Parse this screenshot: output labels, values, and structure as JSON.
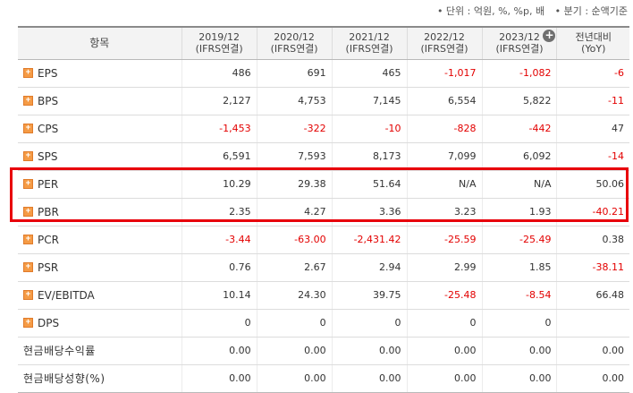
{
  "notes": {
    "unit": "• 단위 : 억원, %, %p, 배",
    "quarter": "• 분기 : 순액기준"
  },
  "table": {
    "item_header": "항목",
    "columns": [
      {
        "year": "2019/12",
        "basis": "(IFRS연결)"
      },
      {
        "year": "2020/12",
        "basis": "(IFRS연결)"
      },
      {
        "year": "2021/12",
        "basis": "(IFRS연결)"
      },
      {
        "year": "2022/12",
        "basis": "(IFRS연결)"
      },
      {
        "year": "2023/12",
        "basis": "(IFRS연결)"
      }
    ],
    "yoy_header": {
      "line1": "전년대비",
      "line2": "(YoY)"
    },
    "expand_icon": "plus-circle-icon",
    "rows": [
      {
        "label": "EPS",
        "expandable": true,
        "values": [
          "486",
          "691",
          "465",
          "-1,017",
          "-1,082"
        ],
        "yoy": "-6"
      },
      {
        "label": "BPS",
        "expandable": true,
        "values": [
          "2,127",
          "4,753",
          "7,145",
          "6,554",
          "5,822"
        ],
        "yoy": "-11"
      },
      {
        "label": "CPS",
        "expandable": true,
        "values": [
          "-1,453",
          "-322",
          "-10",
          "-828",
          "-442"
        ],
        "yoy": "47"
      },
      {
        "label": "SPS",
        "expandable": true,
        "values": [
          "6,591",
          "7,593",
          "8,173",
          "7,099",
          "6,092"
        ],
        "yoy": "-14"
      },
      {
        "label": "PER",
        "expandable": true,
        "values": [
          "10.29",
          "29.38",
          "51.64",
          "N/A",
          "N/A"
        ],
        "yoy": "50.06"
      },
      {
        "label": "PBR",
        "expandable": true,
        "values": [
          "2.35",
          "4.27",
          "3.36",
          "3.23",
          "1.93"
        ],
        "yoy": "-40.21"
      },
      {
        "label": "PCR",
        "expandable": true,
        "values": [
          "-3.44",
          "-63.00",
          "-2,431.42",
          "-25.59",
          "-25.49"
        ],
        "yoy": "0.38"
      },
      {
        "label": "PSR",
        "expandable": true,
        "values": [
          "0.76",
          "2.67",
          "2.94",
          "2.99",
          "1.85"
        ],
        "yoy": "-38.11"
      },
      {
        "label": "EV/EBITDA",
        "expandable": true,
        "values": [
          "10.14",
          "24.30",
          "39.75",
          "-25.48",
          "-8.54"
        ],
        "yoy": "66.48"
      },
      {
        "label": "DPS",
        "expandable": true,
        "values": [
          "0",
          "0",
          "0",
          "0",
          "0"
        ],
        "yoy": ""
      },
      {
        "label": "현금배당수익률",
        "expandable": false,
        "values": [
          "0.00",
          "0.00",
          "0.00",
          "0.00",
          "0.00"
        ],
        "yoy": "0.00"
      },
      {
        "label": "현금배당성향(%)",
        "expandable": false,
        "values": [
          "0.00",
          "0.00",
          "0.00",
          "0.00",
          "0.00"
        ],
        "yoy": "0.00"
      }
    ]
  },
  "highlight_color": "#e8000b",
  "negative_color": "#e30000"
}
